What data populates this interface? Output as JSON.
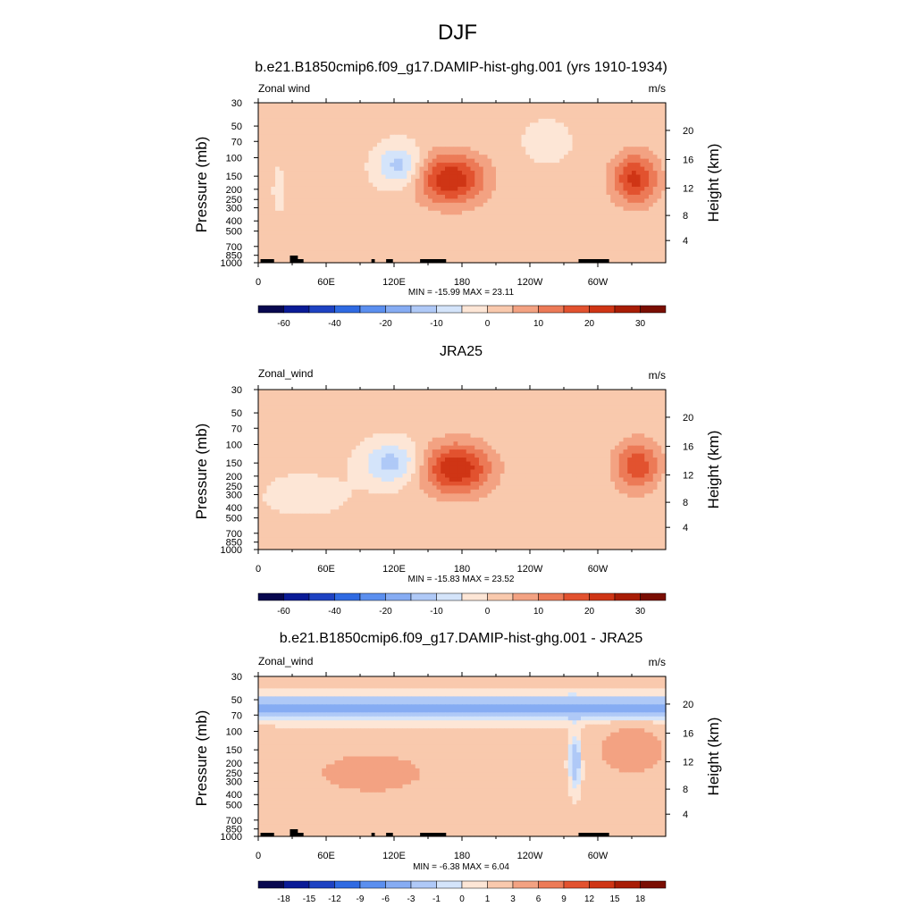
{
  "figure": {
    "title": "DJF"
  },
  "chart_data": [
    {
      "type": "heatmap",
      "title": "b.e21.B1850cmip6.f09_g17.DAMIP-hist-ghg.001 (yrs 1910-1934)",
      "variable_label": "Zonal wind",
      "units": "m/s",
      "xlabel": "",
      "ylabel": "Pressure (mb)",
      "ylabel_right": "Height (km)",
      "x_ticks": [
        "0",
        "60E",
        "120E",
        "180",
        "120W",
        "60W"
      ],
      "x_values_deg": [
        0,
        60,
        120,
        180,
        240,
        300
      ],
      "xlim": [
        0,
        360
      ],
      "y_ticks": [
        "30",
        "50",
        "70",
        "100",
        "150",
        "200",
        "250",
        "300",
        "400",
        "500",
        "700",
        "850",
        "1000"
      ],
      "y_values_mb": [
        30,
        50,
        70,
        100,
        150,
        200,
        250,
        300,
        400,
        500,
        700,
        850,
        1000
      ],
      "ylim_mb": [
        1000,
        30
      ],
      "height_ticks_km": [
        "4",
        "8",
        "12",
        "16",
        "20"
      ],
      "stats": "MIN = -15.99  MAX =  23.11",
      "min": -15.99,
      "max": 23.11,
      "colorbar_ticks": [
        "-60",
        "-40",
        "-20",
        "-10",
        "0",
        "10",
        "20",
        "30"
      ],
      "features": [
        {
          "kind": "jet",
          "lon": 170,
          "lon_width": 30,
          "p_mb": 160,
          "value": 23
        },
        {
          "kind": "jet",
          "lon": 333,
          "lon_width": 20,
          "p_mb": 160,
          "value": 20
        },
        {
          "kind": "easterly",
          "lon": 125,
          "lon_width": 20,
          "p_mb": 120,
          "value": -14
        },
        {
          "kind": "easterly",
          "lon": 18,
          "lon_width": 5,
          "p_mb": 200,
          "value": -5
        },
        {
          "kind": "easterly",
          "lon": 255,
          "lon_width": 20,
          "p_mb": 70,
          "value": -5
        }
      ]
    },
    {
      "type": "heatmap",
      "title": "JRA25",
      "variable_label": "Zonal_wind",
      "units": "m/s",
      "xlabel": "",
      "ylabel": "Pressure (mb)",
      "ylabel_right": "Height (km)",
      "x_ticks": [
        "0",
        "60E",
        "120E",
        "180",
        "120W",
        "60W"
      ],
      "x_values_deg": [
        0,
        60,
        120,
        180,
        240,
        300
      ],
      "xlim": [
        0,
        360
      ],
      "y_ticks": [
        "30",
        "50",
        "70",
        "100",
        "150",
        "200",
        "250",
        "300",
        "400",
        "500",
        "700",
        "850",
        "1000"
      ],
      "y_values_mb": [
        30,
        50,
        70,
        100,
        150,
        200,
        250,
        300,
        400,
        500,
        700,
        850,
        1000
      ],
      "ylim_mb": [
        1000,
        30
      ],
      "height_ticks_km": [
        "4",
        "8",
        "12",
        "16",
        "20"
      ],
      "stats": "MIN = -15.83  MAX =  23.52",
      "min": -15.83,
      "max": 23.52,
      "colorbar_ticks": [
        "-60",
        "-40",
        "-20",
        "-10",
        "0",
        "10",
        "20",
        "30"
      ],
      "features": [
        {
          "kind": "jet",
          "lon": 175,
          "lon_width": 30,
          "p_mb": 170,
          "value": 23.5
        },
        {
          "kind": "jet",
          "lon": 335,
          "lon_width": 20,
          "p_mb": 160,
          "value": 17
        },
        {
          "kind": "easterly",
          "lon": 118,
          "lon_width": 25,
          "p_mb": 150,
          "value": -14
        },
        {
          "kind": "easterly",
          "lon": 40,
          "lon_width": 40,
          "p_mb": 300,
          "value": -4
        }
      ]
    },
    {
      "type": "heatmap",
      "title": "b.e21.B1850cmip6.f09_g17.DAMIP-hist-ghg.001 - JRA25",
      "variable_label": "Zonal_wind",
      "units": "m/s",
      "xlabel": "",
      "ylabel": "Pressure (mb)",
      "ylabel_right": "Height (km)",
      "x_ticks": [
        "0",
        "60E",
        "120E",
        "180",
        "120W",
        "60W"
      ],
      "x_values_deg": [
        0,
        60,
        120,
        180,
        240,
        300
      ],
      "xlim": [
        0,
        360
      ],
      "y_ticks": [
        "30",
        "50",
        "70",
        "100",
        "150",
        "200",
        "250",
        "300",
        "400",
        "500",
        "700",
        "850",
        "1000"
      ],
      "y_values_mb": [
        30,
        50,
        70,
        100,
        150,
        200,
        250,
        300,
        400,
        500,
        700,
        850,
        1000
      ],
      "ylim_mb": [
        1000,
        30
      ],
      "height_ticks_km": [
        "4",
        "8",
        "12",
        "16",
        "20"
      ],
      "stats": "MIN = -6.38  MAX =  6.04",
      "min": -6.38,
      "max": 6.04,
      "colorbar_ticks": [
        "-18",
        "-15",
        "-12",
        "-9",
        "-6",
        "-3",
        "-1",
        "0",
        "1",
        "3",
        "6",
        "9",
        "12",
        "15",
        "18"
      ],
      "features": [
        {
          "kind": "band",
          "p_mb": 60,
          "value": -5
        },
        {
          "kind": "positive",
          "lon": 100,
          "lon_width": 60,
          "p_mb": 250,
          "value": 3
        },
        {
          "kind": "positive",
          "lon": 330,
          "lon_width": 30,
          "p_mb": 150,
          "value": 4
        },
        {
          "kind": "negative",
          "lon": 280,
          "lon_width": 5,
          "p_mb": 190,
          "value": -4
        }
      ]
    }
  ],
  "colorbar": {
    "colors": [
      "#08084f",
      "#0a1b96",
      "#1e42c2",
      "#2f6ae2",
      "#5b8fef",
      "#86acf3",
      "#afc9f7",
      "#d4e4fa",
      "#fde6d6",
      "#f9c9ad",
      "#f3a282",
      "#ec7a57",
      "#e2522f",
      "#cf3515",
      "#a81d06",
      "#7a0e03"
    ]
  }
}
